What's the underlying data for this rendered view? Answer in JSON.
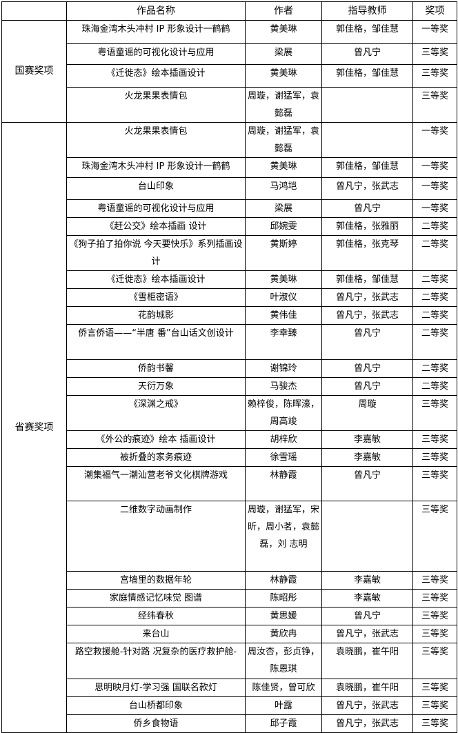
{
  "header": {
    "blank": "",
    "name": "作品名称",
    "author": "作者",
    "teacher": "指导教师",
    "award": "奖项"
  },
  "sections": [
    {
      "label": "国赛奖项",
      "rows": [
        {
          "name": "珠海金湾木头冲村 IP 形象设计一鹤鹤",
          "author": "黄美琳",
          "teacher": "郭佳格，邹佳慧",
          "award": "一等奖"
        },
        {
          "name": "粤语童谣的可视化设计与应用",
          "author": "梁展",
          "teacher": "曾凡宁",
          "award": "三等奖"
        },
        {
          "name": "《迁徙态》绘本插画设计",
          "author": "黄美琳",
          "teacher": "郭佳格，邹佳慧",
          "award": "三等奖"
        },
        {
          "name": "火龙果果表情包",
          "author": "周璇，谢猛军，袁懿磊",
          "teacher": "",
          "award": "三等奖"
        }
      ]
    },
    {
      "label": "省赛奖项",
      "rows": [
        {
          "name": "火龙果果表情包",
          "author": "周璇，谢猛军，袁懿磊",
          "teacher": "",
          "award": "一等奖"
        },
        {
          "name": "珠海金湾木头冲村 IP 形象设计一鹤鹤",
          "author": "黄美琳",
          "teacher": "郭佳格，邹佳慧",
          "award": "一等奖"
        },
        {
          "name": "台山印象",
          "author": "马鸿垲",
          "teacher": "曾凡宁，张武志",
          "award": "一等奖"
        },
        {
          "name": "粤语童谣的可视化设计与应用",
          "author": "梁展",
          "teacher": "曾凡宁",
          "award": "一等奖"
        },
        {
          "name": "《赶公交》绘本插画 设计",
          "author": "邱婉雯",
          "teacher": "郭佳格，张雅丽",
          "award": "二等奖"
        },
        {
          "name": "《狗子拍了拍你说 今天要快乐》系列插画设计",
          "author": "黄斯婷",
          "teacher": "郭佳格，张克琴",
          "award": "二等奖"
        },
        {
          "name": "《迁徙态》绘本插画设计",
          "author": "黄美琳",
          "teacher": "郭佳格，邹佳慧",
          "award": "二等奖"
        },
        {
          "name": "《雪柜密语》",
          "author": "叶淑仪",
          "teacher": "曾凡宁，张武志",
          "award": "二等奖"
        },
        {
          "name": "花韵城影",
          "author": "黄伟佳",
          "teacher": "曾凡宁，张武志",
          "award": "二等奖"
        },
        {
          "name": "侨言侨语——“半唐 番”台山话文创设计",
          "author": "李幸臻",
          "teacher": "曾凡宁",
          "award": "二等奖"
        },
        {
          "name": "侨韵书馨",
          "author": "谢锦玲",
          "teacher": "曾凡宁",
          "award": "二等奖"
        },
        {
          "name": "天衍万象",
          "author": "马骏杰",
          "teacher": "曾凡宁",
          "award": "二等奖"
        },
        {
          "name": "《深渊之戒》",
          "author": "赖梓俊，陈晖濠，周高竣",
          "teacher": "周璇",
          "award": "三等奖"
        },
        {
          "name": "《外公的痕迹》绘本 插画设计",
          "author": "胡梓欣",
          "teacher": "李嘉敏",
          "award": "三等奖"
        },
        {
          "name": "被折叠的家务痕迹",
          "author": "徐雪瑶",
          "teacher": "李嘉敏",
          "award": "三等奖"
        },
        {
          "name": "潮集福气一潮汕营老爷文化棋牌游戏",
          "author": "林静霞",
          "teacher": "曾凡宁",
          "award": "三等奖"
        },
        {
          "name": "二维数字动画制作",
          "author": "周璇，谢猛军，宋昕，周小茗，袁懿磊，刘 志明",
          "teacher": "",
          "award": "三等奖"
        },
        {
          "name": "宫墙里的数据年轮",
          "author": "林静霞",
          "teacher": "李嘉敏",
          "award": "三等奖"
        },
        {
          "name": "家庭情感记忆味觉 图谱",
          "author": "陈昭彤",
          "teacher": "李嘉敏",
          "award": "三等奖"
        },
        {
          "name": "经纬春秋",
          "author": "黄思媛",
          "teacher": "曾凡宁",
          "award": "三等奖"
        },
        {
          "name": "来台山",
          "author": "黄欣冉",
          "teacher": "曾凡宁，张武志",
          "award": "三等奖"
        },
        {
          "name": "路空救援舱-针对路 况复杂的医疗救护舱-",
          "author": "周汝杏，彭贞铮，陈恩琪",
          "teacher": "袁晓鹏，崔午阳",
          "award": "三等奖"
        },
        {
          "name": "思明映月灯-学习强 国联名款灯",
          "author": "陈佳贤，曾可欣",
          "teacher": "袁晓鹏，崔午阳",
          "award": "三等奖"
        },
        {
          "name": "台山桥都印象",
          "author": "叶露",
          "teacher": "曾凡宁，张武志",
          "award": "三等奖"
        },
        {
          "name": "侨乡食物语",
          "author": "邱子霞",
          "teacher": "曾凡宁，张武志",
          "award": "三等奖"
        }
      ]
    }
  ]
}
